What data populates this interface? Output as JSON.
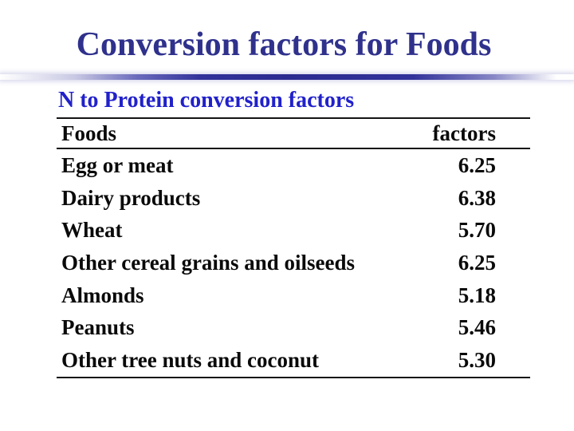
{
  "slide": {
    "title": "Conversion factors for Foods",
    "table_title": "N to Protein conversion factors",
    "table": {
      "columns": [
        "Foods",
        "factors"
      ],
      "rows": [
        {
          "food": "Egg or meat",
          "factor": "6.25"
        },
        {
          "food": "Dairy products",
          "factor": "6.38"
        },
        {
          "food": "Wheat",
          "factor": "5.70"
        },
        {
          "food": "Other cereal grains and oilseeds",
          "factor": "6.25"
        },
        {
          "food": "Almonds",
          "factor": "5.18"
        },
        {
          "food": "Peanuts",
          "factor": "5.46"
        },
        {
          "food": "Other tree nuts and coconut",
          "factor": "5.30"
        }
      ]
    },
    "colors": {
      "title_text": "#2F318C",
      "table_title_text": "#2121CB",
      "divider_core": "#32329B",
      "body_text": "#0A0A0A",
      "rule": "#141414",
      "background": "#FFFFFF"
    }
  }
}
